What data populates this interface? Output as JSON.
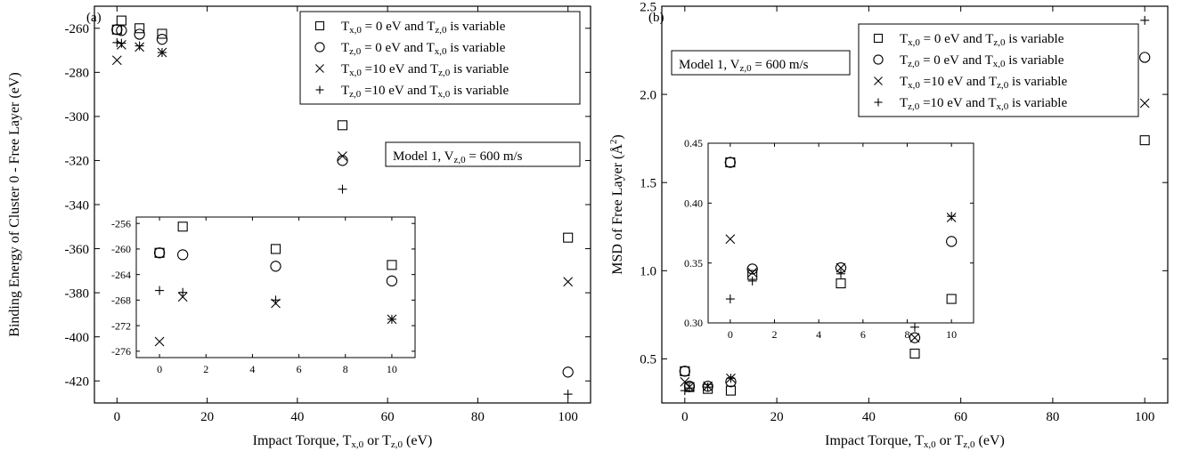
{
  "chart_data": [
    {
      "type": "scatter",
      "panel_label": "(a)",
      "xlabel": "Impact Torque, Tx,0 or Tz,0 (eV)",
      "ylabel": "Binding Energy of Cluster 0 - Free Layer (eV)",
      "xlim": [
        -5,
        105
      ],
      "ylim": [
        -430,
        -250
      ],
      "xticks": [
        0,
        20,
        40,
        60,
        80,
        100
      ],
      "yticks": [
        -260,
        -280,
        -300,
        -320,
        -340,
        -360,
        -380,
        -400,
        -420
      ],
      "annotation": "Model 1, Vz,0 = 600 m/s",
      "legend_position": "top-right",
      "series": [
        {
          "name": "Tx,0 = 0 eV and Tz,0 is variable",
          "marker": "square",
          "x": [
            0,
            1,
            5,
            10,
            50,
            100
          ],
          "y": [
            -260.6,
            -256.5,
            -260.0,
            -262.5,
            -304,
            -355
          ]
        },
        {
          "name": "Tz,0 = 0 eV and Tx,0 is variable",
          "marker": "circle",
          "x": [
            0,
            1,
            5,
            10,
            50,
            100
          ],
          "y": [
            -260.6,
            -261.0,
            -262.7,
            -265.0,
            -320,
            -416
          ]
        },
        {
          "name": "Tx,0 =10 eV and Tz,0 is variable",
          "marker": "x",
          "x": [
            0,
            1,
            5,
            10,
            50,
            100
          ],
          "y": [
            -274.5,
            -267.5,
            -268.5,
            -271.0,
            -318,
            -375
          ]
        },
        {
          "name": "Tz,0 =10 eV and Tx,0 is variable",
          "marker": "plus",
          "x": [
            0,
            1,
            5,
            10,
            50,
            100
          ],
          "y": [
            -266.5,
            -266.8,
            -268.0,
            -271.0,
            -333,
            -426
          ]
        }
      ],
      "inset": {
        "xlim": [
          -1,
          11
        ],
        "ylim": [
          -277,
          -255
        ],
        "xticks": [
          0,
          2,
          4,
          6,
          8,
          10
        ],
        "yticks": [
          -256,
          -260,
          -264,
          -268,
          -272,
          -276
        ],
        "series": [
          {
            "marker": "square",
            "x": [
              0,
              1,
              5,
              10
            ],
            "y": [
              -260.6,
              -256.5,
              -260.0,
              -262.5
            ]
          },
          {
            "marker": "circle",
            "x": [
              0,
              1,
              5,
              10
            ],
            "y": [
              -260.6,
              -260.9,
              -262.7,
              -265.0
            ]
          },
          {
            "marker": "x",
            "x": [
              0,
              1,
              5,
              10
            ],
            "y": [
              -274.5,
              -267.5,
              -268.5,
              -271.0
            ]
          },
          {
            "marker": "plus",
            "x": [
              0,
              1,
              5,
              10
            ],
            "y": [
              -266.5,
              -266.8,
              -268.0,
              -271.0
            ]
          }
        ]
      }
    },
    {
      "type": "scatter",
      "panel_label": "(b)",
      "xlabel": "Impact Torque, Tx,0 or Tz,0 (eV)",
      "ylabel": "MSD of Free Layer (Å²)",
      "xlim": [
        -5,
        105
      ],
      "ylim": [
        0.25,
        2.5
      ],
      "xticks": [
        0,
        20,
        40,
        60,
        80,
        100
      ],
      "yticks": [
        0.5,
        1.0,
        1.5,
        2.0,
        2.5
      ],
      "annotation": "Model 1, Vz,0 = 600 m/s",
      "legend_position": "top-right",
      "series": [
        {
          "name": "Tx,0 = 0 eV and Tz,0 is variable",
          "marker": "square",
          "x": [
            0,
            1,
            5,
            10,
            50,
            100
          ],
          "y": [
            0.43,
            0.34,
            0.33,
            0.32,
            0.53,
            1.74
          ]
        },
        {
          "name": "Tz,0 = 0 eV and Tx,0 is variable",
          "marker": "circle",
          "x": [
            0,
            1,
            5,
            10,
            50,
            100
          ],
          "y": [
            0.43,
            0.345,
            0.345,
            0.37,
            0.62,
            2.21
          ]
        },
        {
          "name": "Tx,0 =10 eV and Tz,0 is variable",
          "marker": "x",
          "x": [
            0,
            1,
            5,
            10,
            50,
            100
          ],
          "y": [
            0.37,
            0.34,
            0.345,
            0.39,
            0.62,
            1.95
          ]
        },
        {
          "name": "Tz,0 =10 eV and Tx,0 is variable",
          "marker": "plus",
          "x": [
            0,
            1,
            5,
            10,
            50,
            100
          ],
          "y": [
            0.32,
            0.335,
            0.34,
            0.39,
            0.68,
            2.42
          ]
        }
      ],
      "inset": {
        "xlim": [
          -1,
          11
        ],
        "ylim": [
          0.3,
          0.45
        ],
        "xticks": [
          0,
          2,
          4,
          6,
          8,
          10
        ],
        "yticks": [
          0.3,
          0.35,
          0.4,
          0.45
        ],
        "series": [
          {
            "marker": "square",
            "x": [
              0,
              1,
              5,
              10
            ],
            "y": [
              0.434,
              0.34,
              0.333,
              0.32
            ]
          },
          {
            "marker": "circle",
            "x": [
              0,
              1,
              5,
              10
            ],
            "y": [
              0.434,
              0.345,
              0.346,
              0.368
            ]
          },
          {
            "marker": "x",
            "x": [
              0,
              1,
              5,
              10
            ],
            "y": [
              0.37,
              0.342,
              0.346,
              0.388
            ]
          },
          {
            "marker": "plus",
            "x": [
              0,
              1,
              5,
              10
            ],
            "y": [
              0.32,
              0.335,
              0.341,
              0.389
            ]
          }
        ]
      }
    }
  ]
}
